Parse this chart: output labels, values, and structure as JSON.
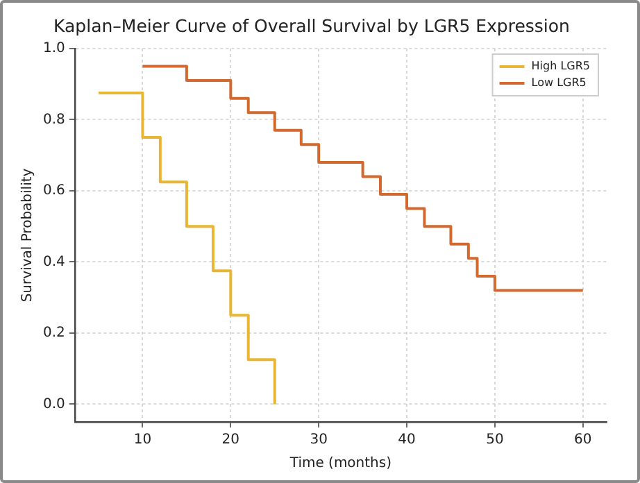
{
  "chart_data": {
    "type": "step",
    "title": "Kaplan–Meier Curve of Overall Survival by LGR5 Expression",
    "xlabel": "Time (months)",
    "ylabel": "Survival Probability",
    "series": [
      {
        "name": "High LGR5",
        "color": "#e8b634",
        "x": [
          5,
          10,
          12,
          15,
          18,
          20,
          22,
          25,
          25
        ],
        "values": [
          0.875,
          0.75,
          0.625,
          0.5,
          0.375,
          0.25,
          0.125,
          0,
          0
        ]
      },
      {
        "name": "Low LGR5",
        "color": "#d2692e",
        "x": [
          10,
          15,
          20,
          22,
          25,
          28,
          30,
          35,
          37,
          40,
          42,
          45,
          47,
          48,
          50,
          60
        ],
        "values": [
          0.95,
          0.91,
          0.86,
          0.82,
          0.77,
          0.73,
          0.68,
          0.64,
          0.59,
          0.55,
          0.5,
          0.45,
          0.41,
          0.36,
          0.32,
          0.32
        ]
      }
    ],
    "xlim": [
      2.3,
      62.7
    ],
    "xticks": [
      10,
      20,
      30,
      40,
      50,
      60
    ],
    "ylim": [
      -0.05,
      1.0
    ],
    "yticks": [
      {
        "value": 0,
        "label": "0.0"
      },
      {
        "value": 0.2,
        "label": "0.2"
      },
      {
        "value": 0.4,
        "label": "0.4"
      },
      {
        "value": 0.6,
        "label": "0.6"
      },
      {
        "value": 0.8,
        "label": "0.8"
      },
      {
        "value": 1.0,
        "label": "1.0"
      }
    ],
    "grid": true,
    "legend": "top right",
    "marker": "none",
    "line_style": "solid"
  }
}
